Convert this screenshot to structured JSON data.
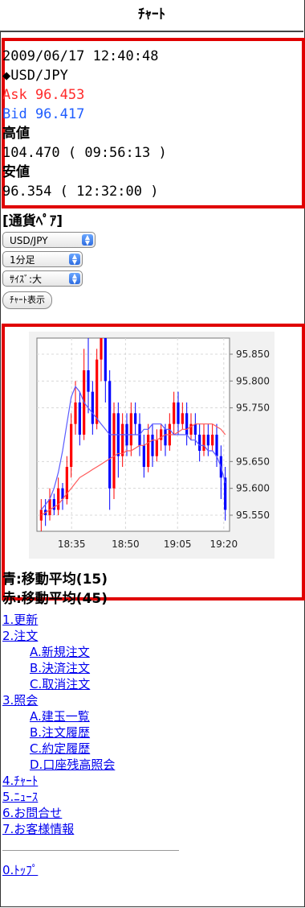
{
  "header": {
    "title": "ﾁｬｰﾄ"
  },
  "quote": {
    "datetime": "2009/06/17 12:40:48",
    "pair": "◆USD/JPY",
    "ask": "Ask 96.453",
    "bid": "Bid 96.417",
    "high_label": "高値",
    "high_value": "104.470 ( 09:56:13 )",
    "low_label": "安値",
    "low_value": "96.354 ( 12:32:00 )"
  },
  "controls": {
    "title": "[通貨ﾍﾟｱ]",
    "pair_select": "USD/JPY",
    "period_select": "1分足",
    "size_select": "ｻｲｽﾞ:大",
    "show_button": "ﾁｬｰﾄ表示"
  },
  "chart_data": {
    "type": "candlestick",
    "y_ticks": [
      "95.850",
      "95.800",
      "95.750",
      "95.650",
      "95.600",
      "95.550"
    ],
    "x_ticks": [
      "18:35",
      "18:50",
      "19:05",
      "19:20"
    ],
    "ylim": [
      95.52,
      95.88
    ],
    "colors": {
      "up": "#ff0000",
      "down": "#0000ff",
      "ma15": "#5a5aff",
      "ma45": "#ff5a5a"
    },
    "candles": [
      [
        95.54,
        95.56,
        95.52,
        95.58
      ],
      [
        95.56,
        95.55,
        95.53,
        95.58
      ],
      [
        95.55,
        95.58,
        95.54,
        95.6
      ],
      [
        95.58,
        95.56,
        95.55,
        95.59
      ],
      [
        95.56,
        95.6,
        95.55,
        95.62
      ],
      [
        95.6,
        95.58,
        95.56,
        95.61
      ],
      [
        95.58,
        95.64,
        95.57,
        95.66
      ],
      [
        95.64,
        95.72,
        95.62,
        95.74
      ],
      [
        95.72,
        95.76,
        95.7,
        95.8
      ],
      [
        95.76,
        95.7,
        95.68,
        95.78
      ],
      [
        95.7,
        95.82,
        95.69,
        95.86
      ],
      [
        95.82,
        95.78,
        95.74,
        95.88
      ],
      [
        95.78,
        95.72,
        95.7,
        95.8
      ],
      [
        95.72,
        95.84,
        95.71,
        95.86
      ],
      [
        95.84,
        95.88,
        95.8,
        95.88
      ],
      [
        95.88,
        95.8,
        95.76,
        95.88
      ],
      [
        95.8,
        95.6,
        95.56,
        95.82
      ],
      [
        95.6,
        95.74,
        95.58,
        95.76
      ],
      [
        95.74,
        95.66,
        95.62,
        95.76
      ],
      [
        95.66,
        95.72,
        95.64,
        95.74
      ],
      [
        95.72,
        95.68,
        95.66,
        95.74
      ],
      [
        95.68,
        95.74,
        95.66,
        95.76
      ],
      [
        95.74,
        95.72,
        95.7,
        95.76
      ],
      [
        95.72,
        95.68,
        95.66,
        95.74
      ],
      [
        95.68,
        95.64,
        95.62,
        95.7
      ],
      [
        95.64,
        95.7,
        95.63,
        95.72
      ],
      [
        95.7,
        95.66,
        95.64,
        95.72
      ],
      [
        95.66,
        95.69,
        95.65,
        95.71
      ],
      [
        95.69,
        95.71,
        95.67,
        95.72
      ],
      [
        95.71,
        95.68,
        95.66,
        95.72
      ],
      [
        95.68,
        95.72,
        95.67,
        95.74
      ],
      [
        95.72,
        95.76,
        95.7,
        95.78
      ],
      [
        95.76,
        95.72,
        95.7,
        95.78
      ],
      [
        95.72,
        95.74,
        95.71,
        95.76
      ],
      [
        95.74,
        95.7,
        95.68,
        95.76
      ],
      [
        95.7,
        95.72,
        95.69,
        95.74
      ],
      [
        95.72,
        95.7,
        95.68,
        95.74
      ],
      [
        95.7,
        95.67,
        95.65,
        95.72
      ],
      [
        95.67,
        95.7,
        95.66,
        95.72
      ],
      [
        95.7,
        95.68,
        95.66,
        95.72
      ],
      [
        95.68,
        95.7,
        95.67,
        95.72
      ],
      [
        95.7,
        95.66,
        95.64,
        95.72
      ],
      [
        95.66,
        95.62,
        95.58,
        95.68
      ],
      [
        95.62,
        95.56,
        95.54,
        95.64
      ]
    ],
    "ma15": [
      95.56,
      95.57,
      95.58,
      95.6,
      95.63,
      95.67,
      95.72,
      95.77,
      95.79,
      95.78,
      95.76,
      95.75,
      95.74,
      95.73,
      95.72,
      95.71,
      95.7,
      95.7,
      95.7,
      95.7,
      95.7,
      95.7,
      95.7,
      95.7,
      95.71,
      95.71,
      95.72,
      95.72,
      95.72,
      95.71,
      95.71,
      95.7,
      95.7,
      95.7,
      95.7,
      95.69,
      95.69,
      95.68,
      95.68,
      95.67,
      95.67,
      95.66,
      95.64,
      95.61
    ],
    "ma45": [
      95.55,
      95.555,
      95.56,
      95.565,
      95.57,
      95.58,
      95.59,
      95.6,
      95.61,
      95.62,
      95.625,
      95.63,
      95.635,
      95.64,
      95.645,
      95.65,
      95.655,
      95.66,
      95.665,
      95.665,
      95.67,
      95.67,
      95.675,
      95.68,
      95.68,
      95.685,
      95.69,
      95.69,
      95.695,
      95.7,
      95.7,
      95.7,
      95.705,
      95.71,
      95.71,
      95.715,
      95.72,
      95.72,
      95.72,
      95.72,
      95.72,
      95.715,
      95.71,
      95.7
    ]
  },
  "legend": {
    "blue": "青:移動平均(15)",
    "red": "赤:移動平均(45)"
  },
  "menu": [
    {
      "label": "1.更新",
      "sub": false,
      "name": "menu-refresh"
    },
    {
      "label": "2.注文",
      "sub": false,
      "name": "menu-order"
    },
    {
      "label": "A.新規注文",
      "sub": true,
      "name": "menu-new-order"
    },
    {
      "label": "B.決済注文",
      "sub": true,
      "name": "menu-settle-order"
    },
    {
      "label": "C.取消注文",
      "sub": true,
      "name": "menu-cancel-order"
    },
    {
      "label": "3.照会",
      "sub": false,
      "name": "menu-inquiry"
    },
    {
      "label": "A.建玉一覧",
      "sub": true,
      "name": "menu-positions"
    },
    {
      "label": "B.注文履歴",
      "sub": true,
      "name": "menu-order-history"
    },
    {
      "label": "C.約定履歴",
      "sub": true,
      "name": "menu-execution-history"
    },
    {
      "label": "D.口座残高照会",
      "sub": true,
      "name": "menu-account-balance"
    },
    {
      "label": "4.ﾁｬｰﾄ",
      "sub": false,
      "name": "menu-chart"
    },
    {
      "label": "5.ﾆｭｰｽ",
      "sub": false,
      "name": "menu-news"
    },
    {
      "label": "6.お問合せ",
      "sub": false,
      "name": "menu-contact"
    },
    {
      "label": "7.お客様情報",
      "sub": false,
      "name": "menu-customer-info"
    }
  ],
  "footer": {
    "top_link": "0.ﾄｯﾌﾟ"
  }
}
